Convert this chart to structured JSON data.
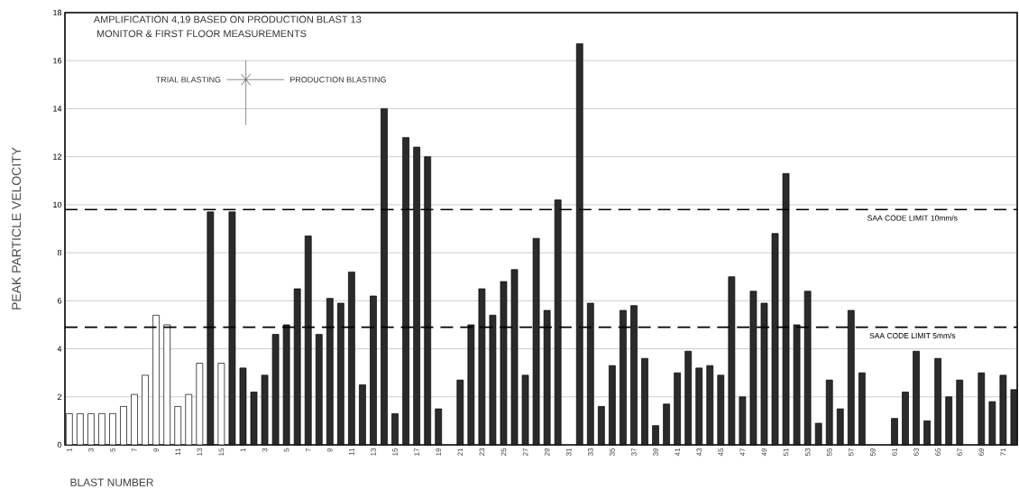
{
  "chart_data": {
    "type": "bar",
    "ylabel": "PEAK PARTICLE VELOCITY",
    "xlabel": "BLAST NUMBER",
    "annotations": [
      "AMPLIFICATION 4,19 BASED ON PRODUCTION BLAST 13",
      "MONITOR & FIRST FLOOR MEASUREMENTS",
      "TRIAL BLASTING",
      "PRODUCTION BLASTING"
    ],
    "categories": [
      "1",
      null,
      "3",
      null,
      "5",
      null,
      "7",
      null,
      "9",
      null,
      "11",
      null,
      "13",
      null,
      "15",
      null,
      "1",
      null,
      "3",
      null,
      "5",
      null,
      "7",
      null,
      "9",
      null,
      "11",
      null,
      "13",
      null,
      "15",
      null,
      "17",
      null,
      "19",
      null,
      "21",
      null,
      "23",
      null,
      "25",
      null,
      "27",
      null,
      "29",
      null,
      "31",
      null,
      "33",
      null,
      "35",
      null,
      "37",
      null,
      "39",
      null,
      "41",
      null,
      "43",
      null,
      "45",
      null,
      "47",
      null,
      "49",
      null,
      "51",
      null,
      "53",
      null,
      "55",
      null,
      "57",
      null,
      "59",
      null,
      "61",
      null,
      "63",
      null,
      "65",
      null,
      "67",
      null,
      "69",
      null,
      "71",
      null
    ],
    "values": [
      1.3,
      1.3,
      1.3,
      1.3,
      1.3,
      1.6,
      2.1,
      2.9,
      5.4,
      5.0,
      1.6,
      2.1,
      3.4,
      9.7,
      3.4,
      9.7,
      3.2,
      2.2,
      2.9,
      4.6,
      5.0,
      6.5,
      8.7,
      4.6,
      6.1,
      5.9,
      7.2,
      2.5,
      6.2,
      14.0,
      1.3,
      12.8,
      12.4,
      12.0,
      1.5,
      null,
      2.7,
      5.0,
      6.5,
      5.4,
      6.8,
      7.3,
      2.9,
      8.6,
      5.6,
      10.2,
      null,
      16.7,
      5.9,
      1.6,
      3.3,
      5.6,
      5.8,
      3.6,
      0.8,
      1.7,
      3.0,
      3.9,
      3.2,
      3.3,
      2.9,
      7.0,
      2.0,
      6.4,
      5.9,
      8.8,
      11.3,
      5.0,
      6.4,
      0.9,
      2.7,
      1.5,
      5.6,
      3.0,
      null,
      null,
      1.1,
      2.2,
      3.9,
      1.0,
      3.6,
      2.0,
      2.7,
      null,
      3.0,
      1.8,
      2.9,
      2.3
    ],
    "colors": [
      "#ffffff",
      "#ffffff",
      "#ffffff",
      "#ffffff",
      "#ffffff",
      "#ffffff",
      "#ffffff",
      "#ffffff",
      "#ffffff",
      "#ffffff",
      "#ffffff",
      "#ffffff",
      "#ffffff",
      "#2b2b2b",
      "#ffffff",
      "#2b2b2b",
      "#2b2b2b",
      "#2b2b2b",
      "#2b2b2b",
      "#2b2b2b",
      "#2b2b2b",
      "#2b2b2b",
      "#2b2b2b",
      "#2b2b2b",
      "#2b2b2b",
      "#2b2b2b",
      "#2b2b2b",
      "#2b2b2b",
      "#2b2b2b",
      "#2b2b2b",
      "#2b2b2b",
      "#2b2b2b",
      "#2b2b2b",
      "#2b2b2b",
      "#2b2b2b",
      "#2b2b2b",
      "#2b2b2b",
      "#2b2b2b",
      "#2b2b2b",
      "#2b2b2b",
      "#2b2b2b",
      "#2b2b2b",
      "#2b2b2b",
      "#2b2b2b",
      "#2b2b2b",
      "#2b2b2b",
      "#2b2b2b",
      "#2b2b2b",
      "#2b2b2b",
      "#2b2b2b",
      "#2b2b2b",
      "#2b2b2b",
      "#2b2b2b",
      "#2b2b2b",
      "#2b2b2b",
      "#2b2b2b",
      "#2b2b2b",
      "#2b2b2b",
      "#2b2b2b",
      "#2b2b2b",
      "#2b2b2b",
      "#2b2b2b",
      "#2b2b2b",
      "#2b2b2b",
      "#2b2b2b",
      "#2b2b2b",
      "#2b2b2b",
      "#2b2b2b",
      "#2b2b2b",
      "#2b2b2b",
      "#2b2b2b",
      "#2b2b2b",
      "#2b2b2b",
      "#2b2b2b",
      "#2b2b2b",
      "#2b2b2b",
      "#2b2b2b",
      "#2b2b2b",
      "#2b2b2b",
      "#2b2b2b",
      "#2b2b2b",
      "#2b2b2b",
      "#2b2b2b",
      "#2b2b2b",
      "#2b2b2b",
      "#2b2b2b",
      "#2b2b2b",
      "#2b2b2b"
    ],
    "ylim": [
      0,
      18
    ],
    "yticks": [
      0,
      2,
      4,
      6,
      8,
      10,
      12,
      14,
      16,
      18
    ],
    "grid": "y",
    "ref_lines": [
      {
        "axis": "y",
        "value": 9.8,
        "label": "SAA CODE LIMIT 10mm/s",
        "line_style": "dashed"
      },
      {
        "axis": "y",
        "value": 4.9,
        "label": "SAA CODE LIMIT 5mm/s",
        "line_style": "dashed"
      }
    ]
  }
}
